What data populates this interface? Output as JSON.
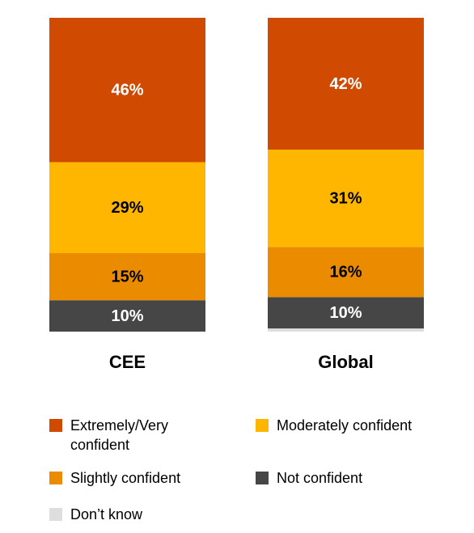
{
  "chart_data": {
    "type": "stacked_bar",
    "categories": [
      "CEE",
      "Global"
    ],
    "ylim": [
      0,
      100
    ],
    "series": [
      {
        "name": "Don’t know",
        "color": "#dedede",
        "values": [
          0,
          1
        ]
      },
      {
        "name": "Not confident",
        "color": "#464646",
        "label_color": "#ffffff",
        "values": [
          10,
          10
        ],
        "value_labels": [
          "10%",
          "10%"
        ]
      },
      {
        "name": "Slightly confident",
        "color": "#eb8c00",
        "label_color": "#000000",
        "values": [
          15,
          16
        ],
        "value_labels": [
          "15%",
          "16%"
        ]
      },
      {
        "name": "Moderately confident",
        "color": "#ffb600",
        "label_color": "#000000",
        "values": [
          29,
          31
        ],
        "value_labels": [
          "29%",
          "31%"
        ]
      },
      {
        "name": "Extremely/Very confident",
        "color": "#d04a02",
        "label_color": "#ffffff",
        "values": [
          46,
          42
        ],
        "value_labels": [
          "46%",
          "42%"
        ]
      }
    ],
    "legend_order": [
      4,
      3,
      2,
      1,
      0
    ]
  }
}
